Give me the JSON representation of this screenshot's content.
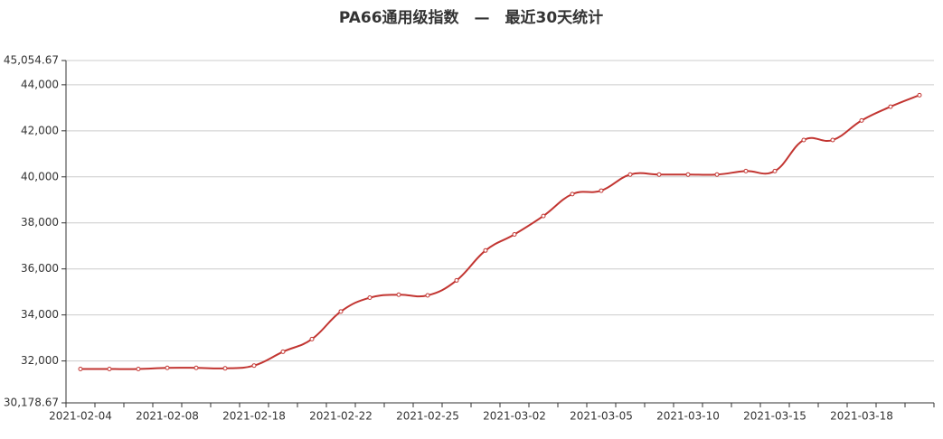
{
  "chart_data": {
    "type": "line",
    "title": "PA66通用级指数　—　最近30天统计",
    "categories": [
      "2021-02-04",
      null,
      null,
      "2021-02-08",
      null,
      null,
      "2021-02-18",
      null,
      null,
      "2021-02-22",
      null,
      null,
      "2021-02-25",
      null,
      null,
      "2021-03-02",
      null,
      null,
      "2021-03-05",
      null,
      null,
      "2021-03-10",
      null,
      null,
      "2021-03-15",
      null,
      null,
      "2021-03-18",
      null,
      null
    ],
    "series": [
      {
        "name": "PA66通用级指数",
        "color": "#c23531",
        "values": [
          31650,
          31650,
          31650,
          31700,
          31700,
          31680,
          31800,
          32400,
          32950,
          34150,
          34750,
          34880,
          34850,
          35500,
          36800,
          37500,
          38300,
          39250,
          39400,
          40100,
          40100,
          40100,
          40100,
          40250,
          40250,
          41600,
          41600,
          42450,
          43050,
          43550
        ]
      }
    ],
    "ylim": [
      30178.67,
      45054.67
    ],
    "yticks": [
      {
        "value": 30178.67,
        "label": "30,178.67"
      },
      {
        "value": 32000,
        "label": "32,000"
      },
      {
        "value": 34000,
        "label": "34,000"
      },
      {
        "value": 36000,
        "label": "36,000"
      },
      {
        "value": 38000,
        "label": "38,000"
      },
      {
        "value": 40000,
        "label": "40,000"
      },
      {
        "value": 42000,
        "label": "42,000"
      },
      {
        "value": 44000,
        "label": "44,000"
      },
      {
        "value": 45054.67,
        "label": "45,054.67"
      }
    ],
    "grid": true
  }
}
